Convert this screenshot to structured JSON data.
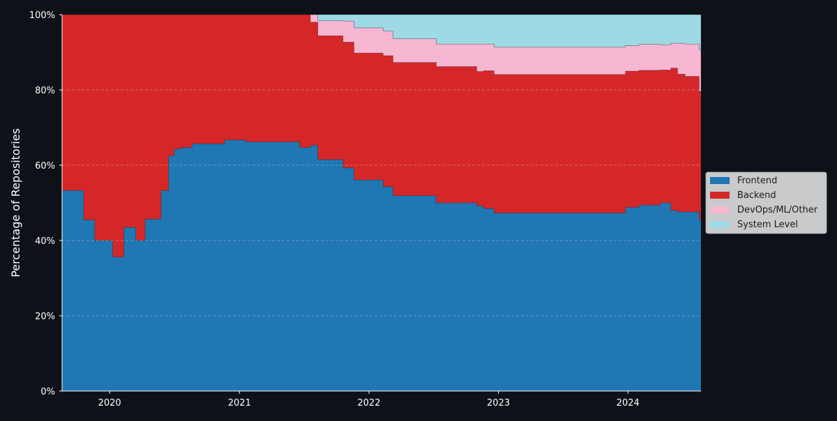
{
  "chart_data": {
    "type": "area",
    "stacked": true,
    "normalized": true,
    "ylabel": "Percentage of Repositories",
    "xlabel": "",
    "title": "",
    "ylim": [
      0,
      100
    ],
    "xlim": [
      "2019-08-20",
      "2024-07-25"
    ],
    "x_ticks": [
      "2020",
      "2021",
      "2022",
      "2023",
      "2024"
    ],
    "y_ticks": [
      "0%",
      "20%",
      "40%",
      "60%",
      "80%",
      "100%"
    ],
    "grid": "horizontal dashed",
    "legend_position": "center-right outside",
    "x": [
      "2019-08-20",
      "2019-10-15",
      "2019-10-20",
      "2019-11-20",
      "2020-01-10",
      "2020-02-10",
      "2020-03-10",
      "2020-03-15",
      "2020-04-10",
      "2020-05-10",
      "2020-05-25",
      "2020-06-15",
      "2020-07-01",
      "2020-07-20",
      "2020-08-20",
      "2020-09-20",
      "2020-10-20",
      "2020-11-20",
      "2021-01-20",
      "2021-06-10",
      "2021-06-20",
      "2021-07-20",
      "2021-08-10",
      "2021-08-20",
      "2021-10-20",
      "2021-11-20",
      "2022-02-10",
      "2022-03-10",
      "2022-04-10",
      "2022-06-10",
      "2022-07-10",
      "2022-08-10",
      "2022-09-10",
      "2022-09-20",
      "2022-11-01",
      "2022-11-20",
      "2022-12-20",
      "2023-06-01",
      "2023-12-10",
      "2023-12-25",
      "2024-02-01",
      "2024-04-01",
      "2024-05-01",
      "2024-05-20",
      "2024-06-10",
      "2024-07-01",
      "2024-07-20",
      "2024-07-25"
    ],
    "series": [
      {
        "name": "Frontend",
        "color": "#1f77b4",
        "values": [
          53.3,
          53.3,
          45.5,
          40,
          35.6,
          43.5,
          43.5,
          40,
          45.7,
          45.7,
          53.3,
          62.5,
          64.3,
          64.7,
          65.7,
          65.7,
          65.7,
          66.7,
          66.2,
          66.2,
          64.7,
          65.3,
          61.5,
          61.5,
          59.3,
          56.1,
          54.3,
          51.9,
          51.9,
          51.9,
          50,
          50,
          50,
          50,
          49.2,
          48.5,
          47.3,
          47.3,
          47.3,
          48.8,
          49.4,
          50,
          48,
          47.6,
          47.6,
          47.6,
          45.5,
          45
        ]
      },
      {
        "name": "Backend",
        "color": "#d62728",
        "values": [
          46.7,
          46.7,
          54.5,
          60,
          64.4,
          56.5,
          56.5,
          60,
          54.3,
          54.3,
          46.7,
          37.5,
          35.7,
          35.3,
          34.3,
          34.3,
          34.3,
          33.3,
          33.8,
          33.8,
          35.3,
          32.7,
          32.9,
          32.9,
          33.4,
          33.7,
          34.8,
          35.4,
          35.4,
          35.4,
          36.2,
          36.2,
          36.2,
          36.2,
          35.7,
          36.6,
          36.8,
          36.8,
          36.8,
          36.2,
          35.8,
          35.3,
          37.8,
          36.6,
          36,
          36,
          34.1,
          34.5
        ]
      },
      {
        "name": "DevOps/ML/Other",
        "color": "#f7b6d2",
        "values": [
          0,
          0,
          0,
          0,
          0,
          0,
          0,
          0,
          0,
          0,
          0,
          0,
          0,
          0,
          0,
          0,
          0,
          0,
          0,
          0,
          0,
          2,
          4,
          4,
          5.6,
          6.7,
          6.5,
          6.3,
          6.3,
          6.3,
          6,
          6,
          6,
          6,
          7.3,
          7.1,
          7.3,
          7.3,
          7.3,
          6.8,
          6.9,
          6.7,
          6.6,
          8.2,
          8.6,
          8.6,
          11,
          10.5
        ]
      },
      {
        "name": "System Level",
        "color": "#9edae5",
        "values": [
          0,
          0,
          0,
          0,
          0,
          0,
          0,
          0,
          0,
          0,
          0,
          0,
          0,
          0,
          0,
          0,
          0,
          0,
          0,
          0,
          0,
          0,
          1.6,
          1.6,
          1.7,
          3.5,
          4.4,
          6.4,
          6.4,
          6.4,
          7.8,
          7.8,
          7.8,
          7.8,
          7.8,
          7.8,
          8.6,
          8.6,
          8.6,
          8.2,
          7.9,
          8,
          7.6,
          7.6,
          7.8,
          7.8,
          9.4,
          10
        ]
      }
    ]
  }
}
